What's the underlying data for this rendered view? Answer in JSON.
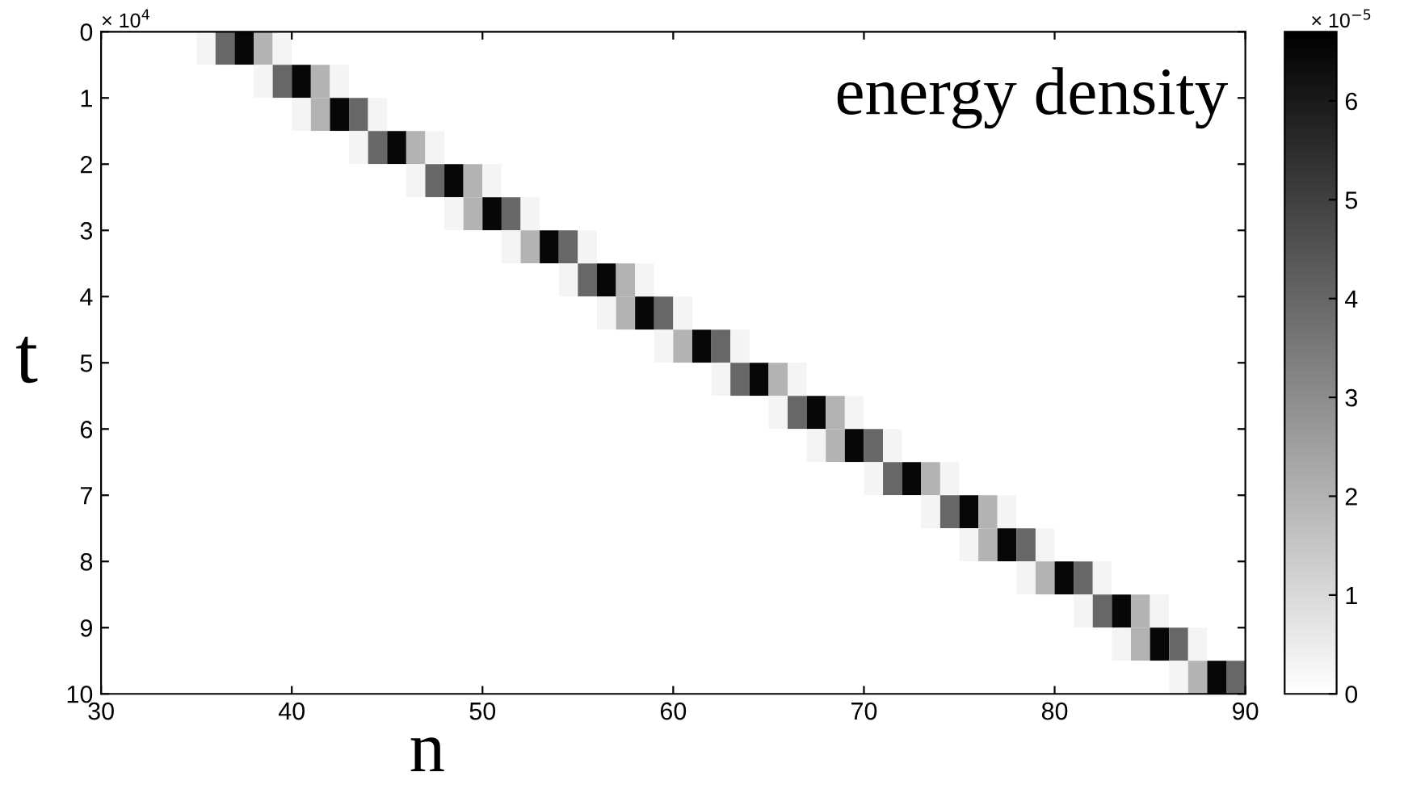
{
  "chart_data": {
    "type": "heatmap",
    "title": "energy density",
    "xlabel": "n",
    "ylabel": "t",
    "clabel": "× 10$^{−5}$",
    "annotations": [
      "× 10$^{4}$"
    ],
    "x": [
      30.5,
      31.5,
      32.5,
      33.5,
      34.5,
      35.5,
      36.5,
      37.5,
      38.5,
      39.5,
      40.5,
      41.5,
      42.5,
      43.5,
      44.5,
      45.5,
      46.5,
      47.5,
      48.5,
      49.5,
      50.5,
      51.5,
      52.5,
      53.5,
      54.5,
      55.5,
      56.5,
      57.5,
      58.5,
      59.5,
      60.5,
      61.5,
      62.5,
      63.5,
      64.5,
      65.5,
      66.5,
      67.5,
      68.5,
      69.5,
      70.5,
      71.5,
      72.5,
      73.5,
      74.5,
      75.5,
      76.5,
      77.5,
      78.5,
      79.5,
      80.5,
      81.5,
      82.5,
      83.5,
      84.5,
      85.5,
      86.5,
      87.5,
      88.5,
      89.5
    ],
    "xlim": [
      30,
      90
    ],
    "xticks": [
      30,
      40,
      50,
      60,
      70,
      80,
      90
    ],
    "ylim": [
      10,
      0
    ],
    "yticks": [
      0,
      1,
      2,
      3,
      4,
      5,
      6,
      7,
      8,
      9,
      10
    ],
    "clim": [
      0,
      6.7
    ],
    "cticks": [
      0,
      1,
      2,
      3,
      4,
      5,
      6
    ],
    "grid": false,
    "cells": [
      [
        0,
        0,
        0,
        0,
        0,
        0.3,
        4,
        6.5,
        2,
        0.3,
        0,
        0,
        0,
        0,
        0,
        0,
        0,
        0,
        0,
        0,
        0,
        0,
        0,
        0,
        0,
        0,
        0,
        0,
        0,
        0,
        0,
        0,
        0,
        0,
        0,
        0,
        0,
        0,
        0,
        0,
        0,
        0,
        0,
        0,
        0,
        0,
        0,
        0,
        0,
        0,
        0,
        0,
        0,
        0,
        0,
        0,
        0,
        0,
        0,
        0
      ],
      [
        0,
        0,
        0,
        0,
        0,
        0,
        0,
        0,
        0.3,
        4,
        6.5,
        2,
        0.3,
        0,
        0,
        0,
        0,
        0,
        0,
        0,
        0,
        0,
        0,
        0,
        0,
        0,
        0,
        0,
        0,
        0,
        0,
        0,
        0,
        0,
        0,
        0,
        0,
        0,
        0,
        0,
        0,
        0,
        0,
        0,
        0,
        0,
        0,
        0,
        0,
        0,
        0,
        0,
        0,
        0,
        0,
        0,
        0,
        0,
        0,
        0
      ],
      [
        0,
        0,
        0,
        0,
        0,
        0,
        0,
        0,
        0,
        0,
        0.3,
        2,
        6.5,
        4,
        0.3,
        0,
        0,
        0,
        0,
        0,
        0,
        0,
        0,
        0,
        0,
        0,
        0,
        0,
        0,
        0,
        0,
        0,
        0,
        0,
        0,
        0,
        0,
        0,
        0,
        0,
        0,
        0,
        0,
        0,
        0,
        0,
        0,
        0,
        0,
        0,
        0,
        0,
        0,
        0,
        0,
        0,
        0,
        0,
        0,
        0
      ],
      [
        0,
        0,
        0,
        0,
        0,
        0,
        0,
        0,
        0,
        0,
        0,
        0,
        0,
        0.3,
        4,
        6.5,
        2,
        0.3,
        0,
        0,
        0,
        0,
        0,
        0,
        0,
        0,
        0,
        0,
        0,
        0,
        0,
        0,
        0,
        0,
        0,
        0,
        0,
        0,
        0,
        0,
        0,
        0,
        0,
        0,
        0,
        0,
        0,
        0,
        0,
        0,
        0,
        0,
        0,
        0,
        0,
        0,
        0,
        0,
        0,
        0
      ],
      [
        0,
        0,
        0,
        0,
        0,
        0,
        0,
        0,
        0,
        0,
        0,
        0,
        0,
        0,
        0,
        0,
        0.3,
        4,
        6.5,
        2,
        0.3,
        0,
        0,
        0,
        0,
        0,
        0,
        0,
        0,
        0,
        0,
        0,
        0,
        0,
        0,
        0,
        0,
        0,
        0,
        0,
        0,
        0,
        0,
        0,
        0,
        0,
        0,
        0,
        0,
        0,
        0,
        0,
        0,
        0,
        0,
        0,
        0,
        0,
        0,
        0
      ],
      [
        0,
        0,
        0,
        0,
        0,
        0,
        0,
        0,
        0,
        0,
        0,
        0,
        0,
        0,
        0,
        0,
        0,
        0,
        0.3,
        2,
        6.5,
        4,
        0.3,
        0,
        0,
        0,
        0,
        0,
        0,
        0,
        0,
        0,
        0,
        0,
        0,
        0,
        0,
        0,
        0,
        0,
        0,
        0,
        0,
        0,
        0,
        0,
        0,
        0,
        0,
        0,
        0,
        0,
        0,
        0,
        0,
        0,
        0,
        0,
        0,
        0
      ],
      [
        0,
        0,
        0,
        0,
        0,
        0,
        0,
        0,
        0,
        0,
        0,
        0,
        0,
        0,
        0,
        0,
        0,
        0,
        0,
        0,
        0,
        0.3,
        2,
        6.5,
        4,
        0.3,
        0,
        0,
        0,
        0,
        0,
        0,
        0,
        0,
        0,
        0,
        0,
        0,
        0,
        0,
        0,
        0,
        0,
        0,
        0,
        0,
        0,
        0,
        0,
        0,
        0,
        0,
        0,
        0,
        0,
        0,
        0,
        0,
        0,
        0
      ],
      [
        0,
        0,
        0,
        0,
        0,
        0,
        0,
        0,
        0,
        0,
        0,
        0,
        0,
        0,
        0,
        0,
        0,
        0,
        0,
        0,
        0,
        0,
        0,
        0,
        0.3,
        4,
        6.5,
        2,
        0.3,
        0,
        0,
        0,
        0,
        0,
        0,
        0,
        0,
        0,
        0,
        0,
        0,
        0,
        0,
        0,
        0,
        0,
        0,
        0,
        0,
        0,
        0,
        0,
        0,
        0,
        0,
        0,
        0,
        0,
        0,
        0
      ],
      [
        0,
        0,
        0,
        0,
        0,
        0,
        0,
        0,
        0,
        0,
        0,
        0,
        0,
        0,
        0,
        0,
        0,
        0,
        0,
        0,
        0,
        0,
        0,
        0,
        0,
        0,
        0.3,
        2,
        6.5,
        4,
        0.3,
        0,
        0,
        0,
        0,
        0,
        0,
        0,
        0,
        0,
        0,
        0,
        0,
        0,
        0,
        0,
        0,
        0,
        0,
        0,
        0,
        0,
        0,
        0,
        0,
        0,
        0,
        0,
        0,
        0
      ],
      [
        0,
        0,
        0,
        0,
        0,
        0,
        0,
        0,
        0,
        0,
        0,
        0,
        0,
        0,
        0,
        0,
        0,
        0,
        0,
        0,
        0,
        0,
        0,
        0,
        0,
        0,
        0,
        0,
        0,
        0.3,
        2,
        6.5,
        4,
        0.3,
        0,
        0,
        0,
        0,
        0,
        0,
        0,
        0,
        0,
        0,
        0,
        0,
        0,
        0,
        0,
        0,
        0,
        0,
        0,
        0,
        0,
        0,
        0,
        0,
        0,
        0
      ],
      [
        0,
        0,
        0,
        0,
        0,
        0,
        0,
        0,
        0,
        0,
        0,
        0,
        0,
        0,
        0,
        0,
        0,
        0,
        0,
        0,
        0,
        0,
        0,
        0,
        0,
        0,
        0,
        0,
        0,
        0,
        0,
        0,
        0.3,
        4,
        6.5,
        2,
        0.3,
        0,
        0,
        0,
        0,
        0,
        0,
        0,
        0,
        0,
        0,
        0,
        0,
        0,
        0,
        0,
        0,
        0,
        0,
        0,
        0,
        0,
        0,
        0
      ],
      [
        0,
        0,
        0,
        0,
        0,
        0,
        0,
        0,
        0,
        0,
        0,
        0,
        0,
        0,
        0,
        0,
        0,
        0,
        0,
        0,
        0,
        0,
        0,
        0,
        0,
        0,
        0,
        0,
        0,
        0,
        0,
        0,
        0,
        0,
        0,
        0.3,
        4,
        6.5,
        2,
        0.3,
        0,
        0,
        0,
        0,
        0,
        0,
        0,
        0,
        0,
        0,
        0,
        0,
        0,
        0,
        0,
        0,
        0,
        0,
        0,
        0
      ],
      [
        0,
        0,
        0,
        0,
        0,
        0,
        0,
        0,
        0,
        0,
        0,
        0,
        0,
        0,
        0,
        0,
        0,
        0,
        0,
        0,
        0,
        0,
        0,
        0,
        0,
        0,
        0,
        0,
        0,
        0,
        0,
        0,
        0,
        0,
        0,
        0,
        0,
        0.3,
        2,
        6.5,
        4,
        0.3,
        0,
        0,
        0,
        0,
        0,
        0,
        0,
        0,
        0,
        0,
        0,
        0,
        0,
        0,
        0,
        0,
        0,
        0
      ],
      [
        0,
        0,
        0,
        0,
        0,
        0,
        0,
        0,
        0,
        0,
        0,
        0,
        0,
        0,
        0,
        0,
        0,
        0,
        0,
        0,
        0,
        0,
        0,
        0,
        0,
        0,
        0,
        0,
        0,
        0,
        0,
        0,
        0,
        0,
        0,
        0,
        0,
        0,
        0,
        0,
        0.3,
        4,
        6.5,
        2,
        0.3,
        0,
        0,
        0,
        0,
        0,
        0,
        0,
        0,
        0,
        0,
        0,
        0,
        0,
        0,
        0
      ],
      [
        0,
        0,
        0,
        0,
        0,
        0,
        0,
        0,
        0,
        0,
        0,
        0,
        0,
        0,
        0,
        0,
        0,
        0,
        0,
        0,
        0,
        0,
        0,
        0,
        0,
        0,
        0,
        0,
        0,
        0,
        0,
        0,
        0,
        0,
        0,
        0,
        0,
        0,
        0,
        0,
        0,
        0,
        0,
        0.3,
        4,
        6.5,
        2,
        0.3,
        0,
        0,
        0,
        0,
        0,
        0,
        0,
        0,
        0,
        0,
        0,
        0
      ],
      [
        0,
        0,
        0,
        0,
        0,
        0,
        0,
        0,
        0,
        0,
        0,
        0,
        0,
        0,
        0,
        0,
        0,
        0,
        0,
        0,
        0,
        0,
        0,
        0,
        0,
        0,
        0,
        0,
        0,
        0,
        0,
        0,
        0,
        0,
        0,
        0,
        0,
        0,
        0,
        0,
        0,
        0,
        0,
        0,
        0,
        0.3,
        2,
        6.5,
        4,
        0.3,
        0,
        0,
        0,
        0,
        0,
        0,
        0,
        0,
        0,
        0
      ],
      [
        0,
        0,
        0,
        0,
        0,
        0,
        0,
        0,
        0,
        0,
        0,
        0,
        0,
        0,
        0,
        0,
        0,
        0,
        0,
        0,
        0,
        0,
        0,
        0,
        0,
        0,
        0,
        0,
        0,
        0,
        0,
        0,
        0,
        0,
        0,
        0,
        0,
        0,
        0,
        0,
        0,
        0,
        0,
        0,
        0,
        0,
        0,
        0,
        0.3,
        2,
        6.5,
        4,
        0.3,
        0,
        0,
        0,
        0,
        0,
        0,
        0
      ],
      [
        0,
        0,
        0,
        0,
        0,
        0,
        0,
        0,
        0,
        0,
        0,
        0,
        0,
        0,
        0,
        0,
        0,
        0,
        0,
        0,
        0,
        0,
        0,
        0,
        0,
        0,
        0,
        0,
        0,
        0,
        0,
        0,
        0,
        0,
        0,
        0,
        0,
        0,
        0,
        0,
        0,
        0,
        0,
        0,
        0,
        0,
        0,
        0,
        0,
        0,
        0,
        0.3,
        4,
        6.5,
        2,
        0.3,
        0,
        0,
        0,
        0
      ],
      [
        0,
        0,
        0,
        0,
        0,
        0,
        0,
        0,
        0,
        0,
        0,
        0,
        0,
        0,
        0,
        0,
        0,
        0,
        0,
        0,
        0,
        0,
        0,
        0,
        0,
        0,
        0,
        0,
        0,
        0,
        0,
        0,
        0,
        0,
        0,
        0,
        0,
        0,
        0,
        0,
        0,
        0,
        0,
        0,
        0,
        0,
        0,
        0,
        0,
        0,
        0,
        0,
        0,
        0.3,
        2,
        6.5,
        4,
        0.3,
        0,
        0
      ],
      [
        0,
        0,
        0,
        0,
        0,
        0,
        0,
        0,
        0,
        0,
        0,
        0,
        0,
        0,
        0,
        0,
        0,
        0,
        0,
        0,
        0,
        0,
        0,
        0,
        0,
        0,
        0,
        0,
        0,
        0,
        0,
        0,
        0,
        0,
        0,
        0,
        0,
        0,
        0,
        0,
        0,
        0,
        0,
        0,
        0,
        0,
        0,
        0,
        0,
        0,
        0,
        0,
        0,
        0,
        0,
        0,
        0.3,
        2,
        6.5,
        4
      ]
    ]
  }
}
